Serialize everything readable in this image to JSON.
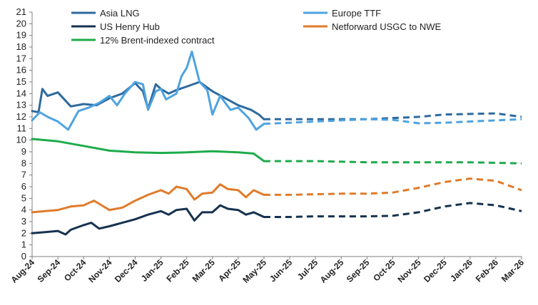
{
  "chart_data": {
    "type": "line",
    "title": "",
    "xlabel": "",
    "ylabel": "",
    "ylim": [
      0,
      21
    ],
    "yticks": [
      0,
      1,
      2,
      3,
      4,
      5,
      6,
      7,
      8,
      9,
      10,
      11,
      12,
      13,
      14,
      15,
      16,
      17,
      18,
      19,
      20,
      21
    ],
    "x_range": [
      "Aug-24",
      "Mar-26"
    ],
    "x_ticks": [
      "Aug-24",
      "Sep-24",
      "Oct-24",
      "Nov-24",
      "Dec-24",
      "Jan-25",
      "Feb-25",
      "Mar-25",
      "Apr-25",
      "May-25",
      "Jun-25",
      "Jul-25",
      "Aug-25",
      "Sep-25",
      "Oct-25",
      "Nov-25",
      "Dec-25",
      "Jan-26",
      "Feb-26",
      "Mar-26"
    ],
    "grid": false,
    "legend_position": "top",
    "series": [
      {
        "name": "Asia LNG",
        "color": "#2e6a9e",
        "actual": [
          [
            0,
            12.5
          ],
          [
            0.25,
            12.4
          ],
          [
            0.4,
            14.4
          ],
          [
            0.6,
            13.8
          ],
          [
            1,
            14.1
          ],
          [
            1.5,
            12.9
          ],
          [
            2,
            13.1
          ],
          [
            2.5,
            13.0
          ],
          [
            3,
            13.6
          ],
          [
            3.5,
            14.0
          ],
          [
            4,
            14.9
          ],
          [
            4.3,
            14.2
          ],
          [
            4.5,
            12.7
          ],
          [
            4.8,
            14.8
          ],
          [
            5,
            14.4
          ],
          [
            5.3,
            14.0
          ],
          [
            5.6,
            14.3
          ],
          [
            6,
            14.6
          ],
          [
            6.5,
            15.0
          ],
          [
            7,
            14.2
          ],
          [
            7.5,
            13.6
          ],
          [
            8,
            13.0
          ],
          [
            8.5,
            12.6
          ],
          [
            8.8,
            12.2
          ],
          [
            9,
            11.8
          ]
        ],
        "forecast": [
          [
            9,
            11.8
          ],
          [
            10,
            11.8
          ],
          [
            11,
            11.8
          ],
          [
            12,
            11.8
          ],
          [
            13,
            11.8
          ],
          [
            14,
            11.9
          ],
          [
            15,
            12.0
          ],
          [
            16,
            12.2
          ],
          [
            17,
            12.25
          ],
          [
            18,
            12.3
          ],
          [
            19,
            12.0
          ]
        ]
      },
      {
        "name": "Europe TTF",
        "color": "#4ea3e0",
        "actual": [
          [
            0,
            11.7
          ],
          [
            0.3,
            12.4
          ],
          [
            0.6,
            12.0
          ],
          [
            1,
            11.6
          ],
          [
            1.4,
            10.9
          ],
          [
            1.8,
            12.5
          ],
          [
            2.2,
            12.8
          ],
          [
            2.6,
            13.2
          ],
          [
            3,
            13.8
          ],
          [
            3.3,
            13.0
          ],
          [
            3.6,
            14.0
          ],
          [
            4,
            15.0
          ],
          [
            4.3,
            14.8
          ],
          [
            4.5,
            12.6
          ],
          [
            4.8,
            14.2
          ],
          [
            5,
            14.4
          ],
          [
            5.2,
            13.5
          ],
          [
            5.6,
            14.0
          ],
          [
            5.8,
            15.5
          ],
          [
            6,
            16.2
          ],
          [
            6.2,
            17.6
          ],
          [
            6.5,
            15.0
          ],
          [
            6.8,
            14.3
          ],
          [
            7,
            12.2
          ],
          [
            7.3,
            13.8
          ],
          [
            7.7,
            12.6
          ],
          [
            8,
            12.8
          ],
          [
            8.4,
            11.9
          ],
          [
            8.7,
            10.9
          ],
          [
            9,
            11.4
          ]
        ],
        "forecast": [
          [
            9,
            11.4
          ],
          [
            10,
            11.5
          ],
          [
            11,
            11.6
          ],
          [
            12,
            11.7
          ],
          [
            13,
            11.8
          ],
          [
            14,
            11.75
          ],
          [
            15,
            11.45
          ],
          [
            16,
            11.5
          ],
          [
            17,
            11.6
          ],
          [
            18,
            11.7
          ],
          [
            19,
            11.8
          ]
        ]
      },
      {
        "name": "US Henry Hub",
        "color": "#16324f",
        "actual": [
          [
            0,
            2.0
          ],
          [
            0.5,
            2.1
          ],
          [
            1,
            2.2
          ],
          [
            1.3,
            1.9
          ],
          [
            1.5,
            2.3
          ],
          [
            2,
            2.7
          ],
          [
            2.3,
            2.9
          ],
          [
            2.6,
            2.4
          ],
          [
            3,
            2.6
          ],
          [
            3.5,
            2.9
          ],
          [
            4,
            3.2
          ],
          [
            4.5,
            3.6
          ],
          [
            5,
            3.9
          ],
          [
            5.3,
            3.6
          ],
          [
            5.6,
            4.0
          ],
          [
            6,
            4.1
          ],
          [
            6.3,
            3.1
          ],
          [
            6.6,
            3.8
          ],
          [
            7,
            3.8
          ],
          [
            7.3,
            4.4
          ],
          [
            7.6,
            4.1
          ],
          [
            8,
            4.0
          ],
          [
            8.3,
            3.6
          ],
          [
            8.6,
            3.8
          ],
          [
            9,
            3.4
          ]
        ],
        "forecast": [
          [
            9,
            3.4
          ],
          [
            10,
            3.4
          ],
          [
            11,
            3.45
          ],
          [
            12,
            3.45
          ],
          [
            13,
            3.45
          ],
          [
            14,
            3.5
          ],
          [
            15,
            3.8
          ],
          [
            16,
            4.3
          ],
          [
            17,
            4.6
          ],
          [
            18,
            4.4
          ],
          [
            19,
            3.9
          ]
        ]
      },
      {
        "name": "Netforward USGC to NWE",
        "color": "#e07b2a",
        "actual": [
          [
            0,
            3.8
          ],
          [
            0.5,
            3.9
          ],
          [
            1,
            4.0
          ],
          [
            1.5,
            4.3
          ],
          [
            2,
            4.4
          ],
          [
            2.4,
            4.8
          ],
          [
            2.7,
            4.4
          ],
          [
            3,
            4.0
          ],
          [
            3.5,
            4.2
          ],
          [
            4,
            4.8
          ],
          [
            4.5,
            5.3
          ],
          [
            5,
            5.7
          ],
          [
            5.3,
            5.4
          ],
          [
            5.6,
            6.0
          ],
          [
            6,
            5.8
          ],
          [
            6.3,
            4.9
          ],
          [
            6.6,
            5.4
          ],
          [
            7,
            5.5
          ],
          [
            7.3,
            6.2
          ],
          [
            7.6,
            5.8
          ],
          [
            8,
            5.7
          ],
          [
            8.3,
            5.1
          ],
          [
            8.6,
            5.7
          ],
          [
            9,
            5.3
          ]
        ],
        "forecast": [
          [
            9,
            5.3
          ],
          [
            10,
            5.3
          ],
          [
            11,
            5.35
          ],
          [
            12,
            5.4
          ],
          [
            13,
            5.4
          ],
          [
            14,
            5.5
          ],
          [
            15,
            5.9
          ],
          [
            16,
            6.4
          ],
          [
            17,
            6.7
          ],
          [
            18,
            6.5
          ],
          [
            19,
            5.7
          ]
        ]
      },
      {
        "name": "12% Brent-indexed contract",
        "color": "#1eab4b",
        "actual": [
          [
            0,
            10.1
          ],
          [
            1,
            9.9
          ],
          [
            2,
            9.5
          ],
          [
            3,
            9.1
          ],
          [
            4,
            8.95
          ],
          [
            5,
            8.9
          ],
          [
            6,
            8.95
          ],
          [
            7,
            9.05
          ],
          [
            8,
            8.95
          ],
          [
            8.6,
            8.85
          ],
          [
            9,
            8.2
          ]
        ],
        "forecast": [
          [
            9,
            8.2
          ],
          [
            10,
            8.2
          ],
          [
            11,
            8.2
          ],
          [
            12,
            8.15
          ],
          [
            13,
            8.1
          ],
          [
            14,
            8.1
          ],
          [
            15,
            8.1
          ],
          [
            16,
            8.1
          ],
          [
            17,
            8.1
          ],
          [
            18,
            8.05
          ],
          [
            19,
            8.0
          ]
        ]
      }
    ]
  }
}
